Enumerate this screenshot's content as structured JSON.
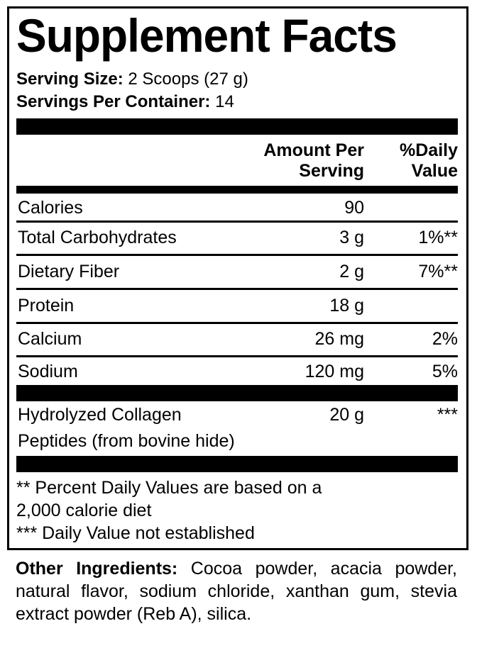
{
  "title": "Supplement Facts",
  "serving_size": {
    "label": "Serving Size:",
    "value": "2 Scoops (27 g)"
  },
  "servings_per_container": {
    "label": "Servings Per Container:",
    "value": "14"
  },
  "header": {
    "amount_line1": "Amount Per",
    "amount_line2": "Serving",
    "dv_line1": "%Daily",
    "dv_line2": "Value"
  },
  "nutrients": [
    {
      "name": "Calories",
      "amount": "90",
      "dv": ""
    },
    {
      "name": "Total Carbohydrates",
      "amount": "3 g",
      "dv": "1%**"
    },
    {
      "name": "Dietary Fiber",
      "amount": "2 g",
      "dv": "7%**"
    },
    {
      "name": "Protein",
      "amount": "18 g",
      "dv": ""
    },
    {
      "name": "Calcium",
      "amount": "26 mg",
      "dv": "2%"
    },
    {
      "name": "Sodium",
      "amount": "120 mg",
      "dv": "5%"
    }
  ],
  "proprietary": {
    "name_line1": "Hydrolyzed Collagen",
    "name_line2": "Peptides (from bovine hide)",
    "amount": "20 g",
    "dv": "***"
  },
  "footnotes": {
    "line1": "** Percent Daily Values are based on a",
    "line2": "2,000 calorie diet",
    "line3": "*** Daily Value not established"
  },
  "other_ingredients": {
    "label": "Other Ingredients:",
    "text": "Cocoa powder, acacia powder, natural flavor, sodium chloride, xanthan gum, stevia extract powder (Reb A), silica."
  }
}
